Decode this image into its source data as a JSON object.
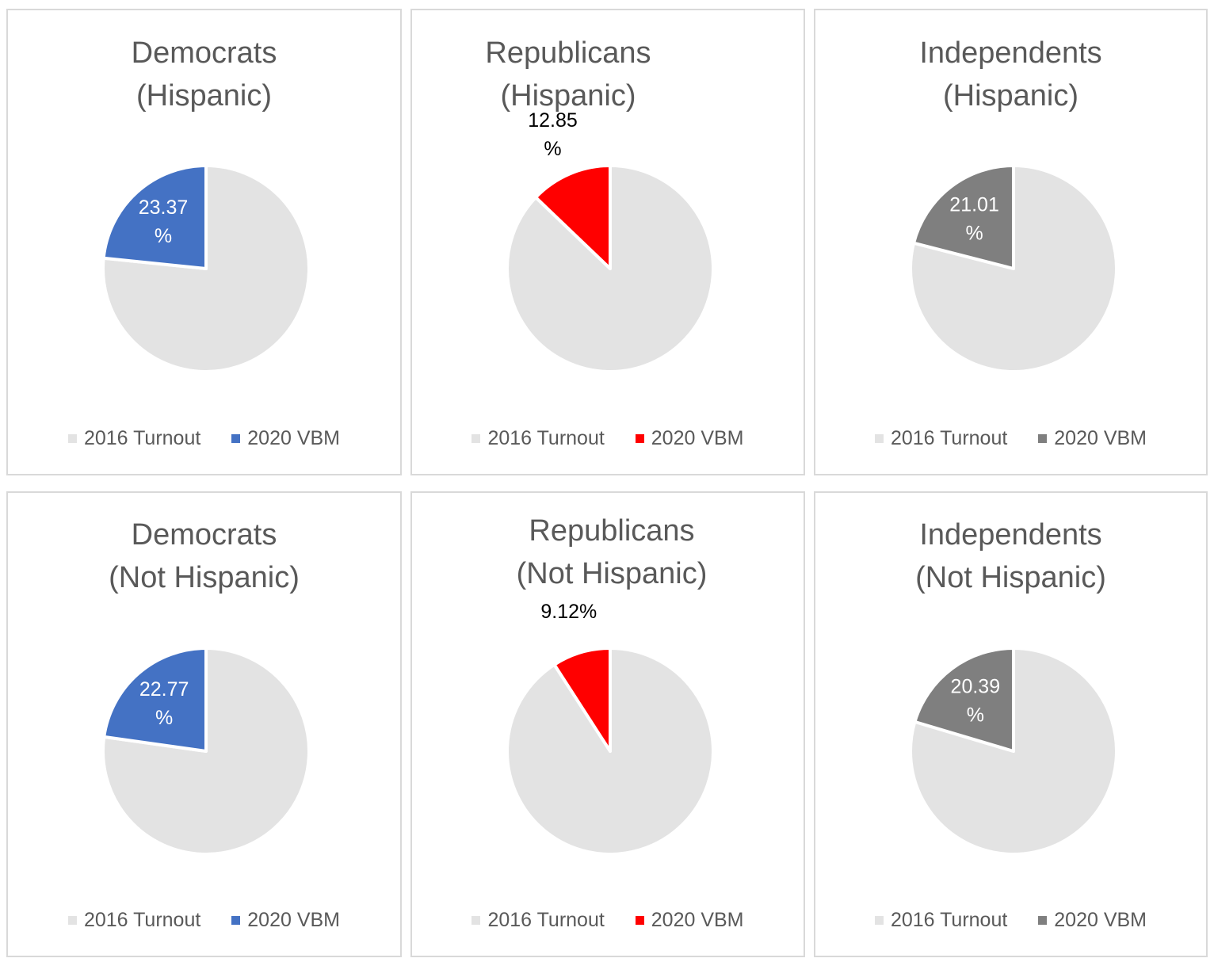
{
  "chart_data": [
    {
      "type": "pie",
      "title_line1": "Democrats",
      "title_line2": "(Hispanic)",
      "categories": [
        "2016 Turnout",
        "2020 VBM"
      ],
      "values": [
        76.63,
        23.37
      ],
      "label_line1": "23.37",
      "label_line2": "%",
      "colors": [
        "#e3e3e3",
        "#4472c4"
      ],
      "label_color": "#ffffff",
      "label_position": "inside"
    },
    {
      "type": "pie",
      "title_line1": "Republicans",
      "title_line2": "(Hispanic)",
      "categories": [
        "2016 Turnout",
        "2020 VBM"
      ],
      "values": [
        87.15,
        12.85
      ],
      "label_line1": "12.85",
      "label_line2": "%",
      "colors": [
        "#e3e3e3",
        "#ff0000"
      ],
      "label_color": "#000000",
      "label_position": "outside"
    },
    {
      "type": "pie",
      "title_line1": "Independents",
      "title_line2": "(Hispanic)",
      "categories": [
        "2016 Turnout",
        "2020 VBM"
      ],
      "values": [
        78.99,
        21.01
      ],
      "label_line1": "21.01",
      "label_line2": "%",
      "colors": [
        "#e3e3e3",
        "#7f7f7f"
      ],
      "label_color": "#ffffff",
      "label_position": "inside"
    },
    {
      "type": "pie",
      "title_line1": "Democrats",
      "title_line2": "(Not Hispanic)",
      "categories": [
        "2016 Turnout",
        "2020 VBM"
      ],
      "values": [
        77.23,
        22.77
      ],
      "label_line1": "22.77",
      "label_line2": "%",
      "colors": [
        "#e3e3e3",
        "#4472c4"
      ],
      "label_color": "#ffffff",
      "label_position": "inside"
    },
    {
      "type": "pie",
      "title_line1": "Republicans",
      "title_line2": "(Not Hispanic)",
      "categories": [
        "2016 Turnout",
        "2020 VBM"
      ],
      "values": [
        90.88,
        9.12
      ],
      "label_line1": "9.12%",
      "label_line2": "",
      "colors": [
        "#e3e3e3",
        "#ff0000"
      ],
      "label_color": "#000000",
      "label_position": "outside"
    },
    {
      "type": "pie",
      "title_line1": "Independents",
      "title_line2": "(Not Hispanic)",
      "categories": [
        "2016 Turnout",
        "2020 VBM"
      ],
      "values": [
        79.61,
        20.39
      ],
      "label_line1": "20.39",
      "label_line2": "%",
      "colors": [
        "#e3e3e3",
        "#7f7f7f"
      ],
      "label_color": "#ffffff",
      "label_position": "inside"
    }
  ]
}
